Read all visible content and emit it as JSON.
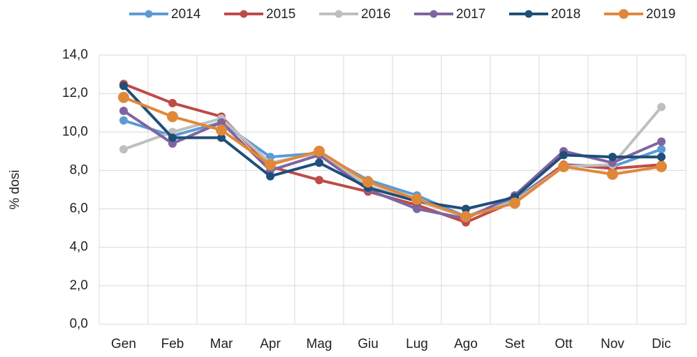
{
  "chart_data": {
    "type": "line",
    "y_label": "% dosi",
    "categories": [
      "Gen",
      "Feb",
      "Mar",
      "Apr",
      "Mag",
      "Giu",
      "Lug",
      "Ago",
      "Set",
      "Ott",
      "Nov",
      "Dic"
    ],
    "series": [
      {
        "name": "2014",
        "color": "#5b9bd5",
        "values": [
          10.6,
          9.8,
          10.5,
          8.7,
          8.9,
          7.5,
          6.7,
          5.6,
          6.5,
          8.3,
          8.2,
          9.1
        ]
      },
      {
        "name": "2015",
        "color": "#be4b48",
        "values": [
          12.5,
          11.5,
          10.8,
          8.2,
          7.5,
          6.9,
          6.2,
          5.3,
          6.4,
          8.3,
          8.1,
          8.3
        ]
      },
      {
        "name": "2016",
        "color": "#bfbfbf",
        "values": [
          9.1,
          10.0,
          10.7,
          8.4,
          8.9,
          7.2,
          6.4,
          5.6,
          6.4,
          8.2,
          8.3,
          11.3
        ]
      },
      {
        "name": "2017",
        "color": "#8064a2",
        "values": [
          11.1,
          9.4,
          10.5,
          8.0,
          8.8,
          7.0,
          6.0,
          5.5,
          6.7,
          9.0,
          8.4,
          9.5
        ]
      },
      {
        "name": "2018",
        "color": "#1f4e79",
        "values": [
          12.4,
          9.7,
          9.7,
          7.7,
          8.4,
          7.1,
          6.4,
          6.0,
          6.6,
          8.8,
          8.7,
          8.7
        ]
      },
      {
        "name": "2019",
        "color": "#e0883a",
        "values": [
          11.8,
          10.8,
          10.1,
          8.3,
          9.0,
          7.4,
          6.5,
          5.6,
          6.3,
          8.2,
          7.8,
          8.2
        ]
      }
    ],
    "ylim": [
      0,
      14
    ],
    "yticks": [
      {
        "value": 0,
        "label": "0,0"
      },
      {
        "value": 2,
        "label": "2,0"
      },
      {
        "value": 4,
        "label": "4,0"
      },
      {
        "value": 6,
        "label": "6,0"
      },
      {
        "value": 8,
        "label": "8,0"
      },
      {
        "value": 10,
        "label": "10,0"
      },
      {
        "value": 12,
        "label": "12,0"
      },
      {
        "value": 14,
        "label": "14,0"
      }
    ],
    "grid": true,
    "legend": "top"
  }
}
